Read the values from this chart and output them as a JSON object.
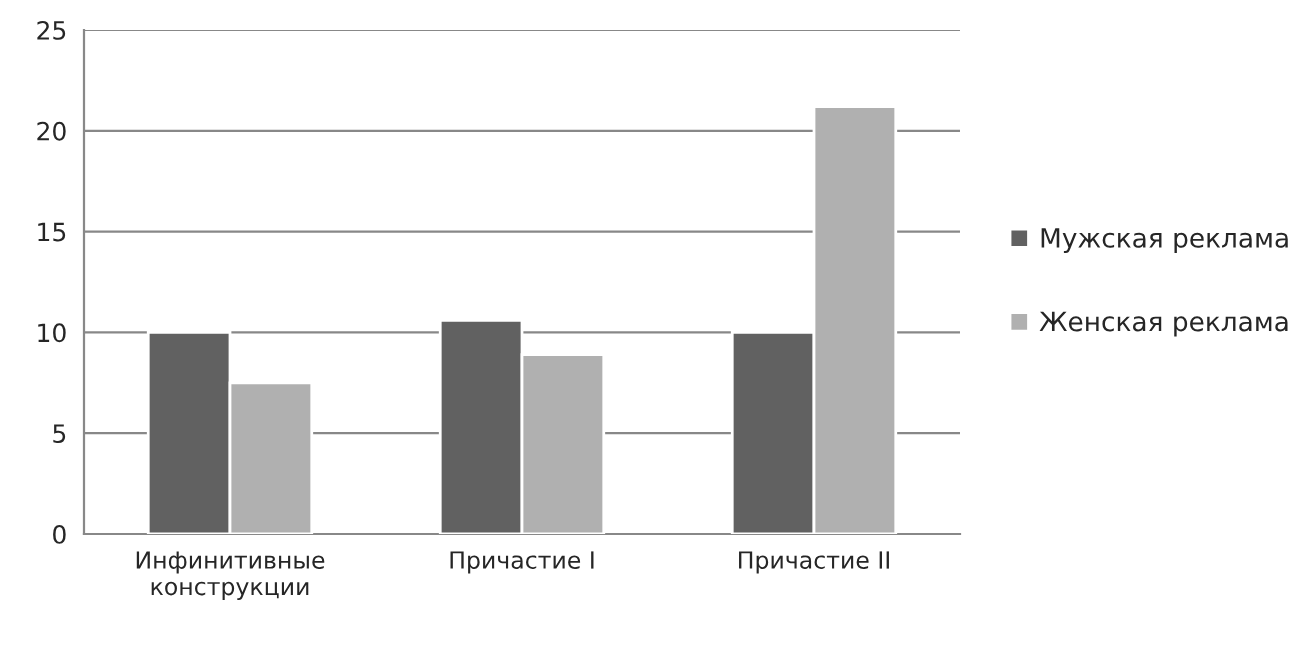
{
  "chart_data": {
    "type": "bar",
    "categories": [
      "Инфинитивные\nконструкции",
      "Причастие I",
      "Причастие II"
    ],
    "series": [
      {
        "name": "Мужская реклама",
        "color": "#616161",
        "values": [
          10,
          10.6,
          10
        ]
      },
      {
        "name": "Женская реклама",
        "color": "#b0b0b0",
        "values": [
          7.5,
          8.9,
          21.2
        ]
      }
    ],
    "ylim": [
      0,
      25
    ],
    "yticks": [
      0,
      5,
      10,
      15,
      20,
      25
    ],
    "grid": "y",
    "legend": "right"
  }
}
